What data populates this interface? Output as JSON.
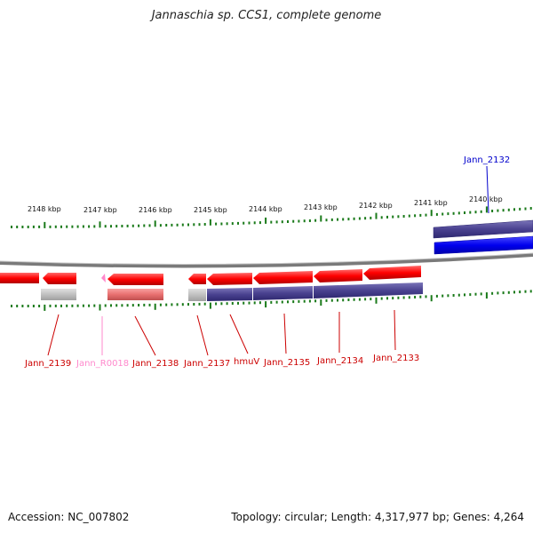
{
  "title": "Jannaschia sp. CCS1, complete genome",
  "footer": {
    "accession": "Accession: NC_007802",
    "summary": "Topology: circular; Length: 4,317,977 bp; Genes: 4,264"
  },
  "colors": {
    "backbone": "#808080",
    "tick": "#1a7a1a",
    "gene_fwd": "#ff0000",
    "gene_rev": "#ff0000",
    "rna": "#ff88cc",
    "protein_bar": "#4a4290",
    "protein_bar_blue": "#0000ee",
    "label_red": "#cc0000",
    "label_pink": "#ff88cc",
    "label_blue": "#0000cc"
  },
  "upper_ticks": [
    "2148 kbp",
    "2147 kbp",
    "2146 kbp",
    "2145 kbp",
    "2144 kbp",
    "2143 kbp",
    "2142 kbp",
    "2141 kbp",
    "2140 kbp"
  ],
  "genes": [
    {
      "name": "Jann_2139",
      "color": "red"
    },
    {
      "name": "Jann_R0018",
      "color": "pink"
    },
    {
      "name": "Jann_2138",
      "color": "red"
    },
    {
      "name": "Jann_2137",
      "color": "red"
    },
    {
      "name": "hmuV",
      "color": "red"
    },
    {
      "name": "Jann_2135",
      "color": "red"
    },
    {
      "name": "Jann_2134",
      "color": "red"
    },
    {
      "name": "Jann_2133",
      "color": "red"
    },
    {
      "name": "Jann_2132",
      "color": "blue"
    }
  ]
}
